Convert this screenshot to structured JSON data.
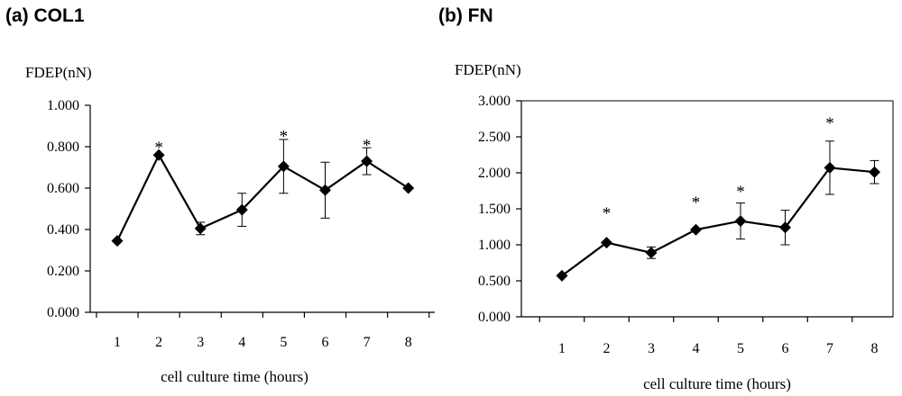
{
  "chart_data": [
    {
      "type": "line",
      "title": "(a) COL1",
      "ylabel": "FDEP(nN)",
      "xlabel": "cell culture time (hours)",
      "x": [
        1,
        2,
        3,
        4,
        5,
        6,
        7,
        8
      ],
      "x_tick_labels": [
        "1",
        "2",
        "3",
        "4",
        "5",
        "6",
        "7",
        "8"
      ],
      "y_tick_labels": [
        "0.000",
        "0.200",
        "0.400",
        "0.600",
        "0.800",
        "1.000"
      ],
      "ylim": [
        0,
        1.0
      ],
      "grid": false,
      "frame": false,
      "series": [
        {
          "values": [
            0.345,
            0.76,
            0.405,
            0.495,
            0.705,
            0.59,
            0.73,
            0.6
          ],
          "errors": [
            0.0,
            0.0,
            0.03,
            0.08,
            0.13,
            0.135,
            0.065,
            0.0
          ],
          "marker": "diamond"
        }
      ],
      "annotations": [
        {
          "x": 2,
          "text": "*",
          "y": 0.8
        },
        {
          "x": 5,
          "text": "*",
          "y": 0.855
        },
        {
          "x": 7,
          "text": "*",
          "y": 0.81
        }
      ]
    },
    {
      "type": "line",
      "title": "(b) FN",
      "ylabel": "FDEP(nN)",
      "xlabel": "cell culture time (hours)",
      "x": [
        1,
        2,
        3,
        4,
        5,
        6,
        7,
        8
      ],
      "x_tick_labels": [
        "1",
        "2",
        "3",
        "4",
        "5",
        "6",
        "7",
        "8"
      ],
      "y_tick_labels": [
        "0.000",
        "0.500",
        "1.000",
        "1.500",
        "2.000",
        "2.500",
        "3.000"
      ],
      "ylim": [
        0,
        3.0
      ],
      "grid": false,
      "frame": true,
      "series": [
        {
          "values": [
            0.57,
            1.03,
            0.89,
            1.21,
            1.33,
            1.24,
            2.07,
            2.01
          ],
          "errors": [
            0.0,
            0.0,
            0.08,
            0.0,
            0.25,
            0.24,
            0.37,
            0.16
          ],
          "marker": "diamond"
        }
      ],
      "annotations": [
        {
          "x": 2,
          "text": "*",
          "y": 1.45
        },
        {
          "x": 4,
          "text": "*",
          "y": 1.6
        },
        {
          "x": 5,
          "text": "*",
          "y": 1.75
        },
        {
          "x": 7,
          "text": "*",
          "y": 2.7
        }
      ]
    }
  ]
}
